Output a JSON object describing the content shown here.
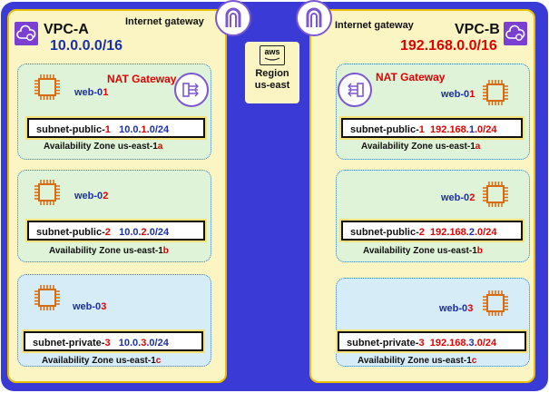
{
  "region": {
    "logo_text": "aws",
    "line1": "Region",
    "line2": "us-east"
  },
  "vpcs": [
    {
      "name": "VPC-A",
      "cidr": "10.0.0.0/16",
      "cidr_color": "#1b2fa8",
      "igw_label": "Internet gateway",
      "nat_label": "NAT Gateway",
      "subnets": [
        {
          "kind": "public",
          "web_base": "web-0",
          "web_num": "1",
          "name_base": "subnet-public-",
          "name_num": "1",
          "cidr_a": "10.0.",
          "cidr_b": "1",
          "cidr_c": ".0/24",
          "az_base": "Availability Zone us-east-1",
          "az_letter": "a"
        },
        {
          "kind": "public",
          "web_base": "web-0",
          "web_num": "2",
          "name_base": "subnet-public-",
          "name_num": "2",
          "cidr_a": "10.0.",
          "cidr_b": "2",
          "cidr_c": ".0/24",
          "az_base": "Availability Zone us-east-1",
          "az_letter": "b"
        },
        {
          "kind": "private",
          "web_base": "web-0",
          "web_num": "3",
          "name_base": "subnet-private-",
          "name_num": "3",
          "cidr_a": "10.0.",
          "cidr_b": "3",
          "cidr_c": ".0/24",
          "az_base": "Availability Zone us-east-1",
          "az_letter": "c"
        }
      ]
    },
    {
      "name": "VPC-B",
      "cidr": "192.168.0.0/16",
      "cidr_color": "#e00000",
      "igw_label": "Internet gateway",
      "nat_label": "NAT Gateway",
      "subnets": [
        {
          "kind": "public",
          "web_base": "web-0",
          "web_num": "1",
          "name_base": "subnet-public-",
          "name_num": "1",
          "cidr_a": "192.168.",
          "cidr_b": "1",
          "cidr_c": ".0/24",
          "az_base": "Availability Zone us-east-1",
          "az_letter": "a"
        },
        {
          "kind": "public",
          "web_base": "web-0",
          "web_num": "2",
          "name_base": "subnet-public-",
          "name_num": "2",
          "cidr_a": "192.168.",
          "cidr_b": "2",
          "cidr_c": ".0/24",
          "az_base": "Availability Zone us-east-1",
          "az_letter": "b"
        },
        {
          "kind": "private",
          "web_base": "web-0",
          "web_num": "3",
          "name_base": "subnet-private-",
          "name_num": "3",
          "cidr_a": "192.168.",
          "cidr_b": "3",
          "cidr_c": ".0/24",
          "az_base": "Availability Zone us-east-1",
          "az_letter": "c"
        }
      ]
    }
  ],
  "colors": {
    "outer": "#3a3ad6",
    "vpc_fill": "#fbf5c3",
    "vpc_border": "#e8c000",
    "public_subnet": "#dff3d8",
    "private_subnet": "#d6ecf6",
    "accent_red": "#e00000",
    "accent_blue": "#1b2fa8",
    "chip": "#d86a10",
    "gateway_purple": "#7b57d1"
  },
  "icons": [
    "internet-gateway-icon",
    "nat-gateway-icon",
    "ec2-instance-icon",
    "vpc-cloud-icon",
    "aws-logo-icon"
  ]
}
